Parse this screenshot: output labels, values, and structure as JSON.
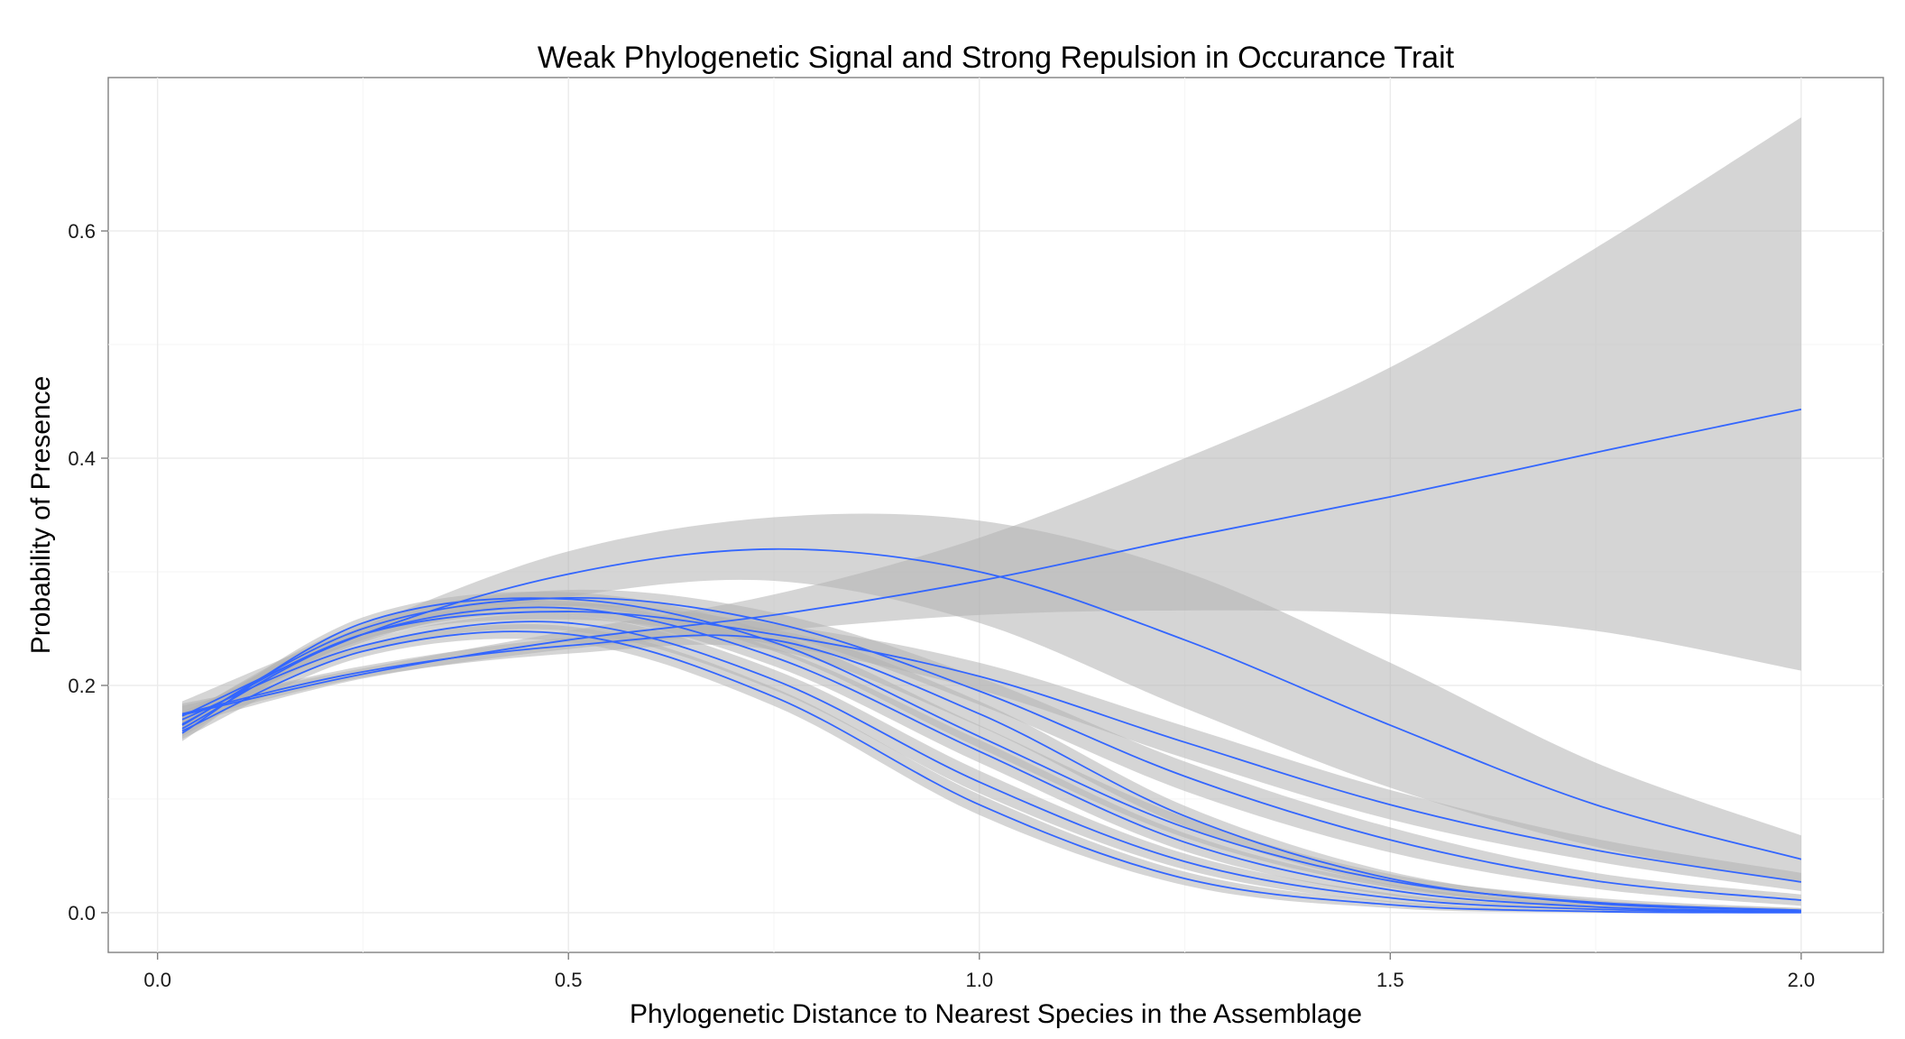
{
  "chart_data": {
    "type": "line",
    "title": "Weak Phylogenetic Signal and Strong Repulsion in Occurance Trait",
    "xlabel": "Phylogenetic Distance to Nearest Species in the Assemblage",
    "ylabel": "Probability of Presence",
    "xlim": [
      -0.06,
      2.1
    ],
    "ylim": [
      -0.035,
      0.735
    ],
    "x_ticks": [
      0.0,
      0.5,
      1.0,
      1.5,
      2.0
    ],
    "x_tick_labels": [
      "0.0",
      "0.5",
      "1.0",
      "1.5",
      "2.0"
    ],
    "y_ticks": [
      0.0,
      0.2,
      0.4,
      0.6
    ],
    "y_tick_labels": [
      "0.0",
      "0.2",
      "0.4",
      "0.6"
    ],
    "grid": true,
    "legend": "none",
    "line_color": "#3366ff",
    "ribbon_color": "#b3b3b3",
    "series": [
      {
        "x": [
          0.03,
          0.25,
          0.5,
          0.75,
          1.0,
          1.25,
          1.5,
          1.75,
          2.0
        ],
        "values": [
          0.174,
          0.21,
          0.24,
          0.262,
          0.292,
          0.33,
          0.366,
          0.405,
          0.443
        ],
        "lower": [
          0.165,
          0.206,
          0.232,
          0.248,
          0.262,
          0.266,
          0.263,
          0.248,
          0.213
        ],
        "upper": [
          0.184,
          0.215,
          0.248,
          0.28,
          0.33,
          0.4,
          0.48,
          0.585,
          0.7
        ]
      },
      {
        "x": [
          0.03,
          0.25,
          0.5,
          0.75,
          1.0,
          1.25,
          1.5,
          1.75,
          2.0
        ],
        "values": [
          0.173,
          0.245,
          0.298,
          0.32,
          0.3,
          0.24,
          0.165,
          0.095,
          0.047
        ],
        "lower": [
          0.16,
          0.238,
          0.278,
          0.292,
          0.255,
          0.18,
          0.11,
          0.058,
          0.026
        ],
        "upper": [
          0.186,
          0.252,
          0.318,
          0.348,
          0.345,
          0.3,
          0.22,
          0.132,
          0.068
        ]
      },
      {
        "x": [
          0.03,
          0.25,
          0.5,
          0.75,
          1.0,
          1.25,
          1.5,
          1.75,
          2.0
        ],
        "values": [
          0.166,
          0.245,
          0.265,
          0.245,
          0.208,
          0.15,
          0.095,
          0.055,
          0.027
        ],
        "lower": [
          0.158,
          0.24,
          0.258,
          0.236,
          0.196,
          0.136,
          0.082,
          0.045,
          0.019
        ],
        "upper": [
          0.174,
          0.25,
          0.272,
          0.254,
          0.22,
          0.164,
          0.108,
          0.065,
          0.035
        ]
      },
      {
        "x": [
          0.03,
          0.25,
          0.5,
          0.75,
          1.0,
          1.25,
          1.5,
          1.75,
          2.0
        ],
        "values": [
          0.165,
          0.25,
          0.277,
          0.255,
          0.195,
          0.12,
          0.064,
          0.028,
          0.011
        ],
        "lower": [
          0.157,
          0.245,
          0.27,
          0.246,
          0.183,
          0.107,
          0.053,
          0.021,
          0.006
        ],
        "upper": [
          0.173,
          0.255,
          0.284,
          0.264,
          0.207,
          0.133,
          0.075,
          0.035,
          0.016
        ]
      },
      {
        "x": [
          0.03,
          0.25,
          0.5,
          0.75,
          1.0,
          1.25,
          1.5,
          1.75,
          2.0
        ],
        "values": [
          0.158,
          0.255,
          0.276,
          0.238,
          0.155,
          0.075,
          0.028,
          0.009,
          0.002
        ],
        "lower": [
          0.151,
          0.25,
          0.27,
          0.23,
          0.145,
          0.066,
          0.022,
          0.005,
          0.0
        ],
        "upper": [
          0.165,
          0.26,
          0.282,
          0.246,
          0.165,
          0.084,
          0.034,
          0.013,
          0.004
        ]
      },
      {
        "x": [
          0.03,
          0.25,
          0.5,
          0.75,
          1.0,
          1.25,
          1.5,
          1.75,
          2.0
        ],
        "values": [
          0.162,
          0.245,
          0.268,
          0.225,
          0.142,
          0.062,
          0.02,
          0.005,
          0.001
        ],
        "lower": [
          0.155,
          0.24,
          0.262,
          0.217,
          0.132,
          0.054,
          0.015,
          0.003,
          0.0
        ],
        "upper": [
          0.169,
          0.25,
          0.274,
          0.233,
          0.152,
          0.07,
          0.025,
          0.007,
          0.002
        ]
      },
      {
        "x": [
          0.03,
          0.25,
          0.5,
          0.75,
          1.0,
          1.25,
          1.5,
          1.75,
          2.0
        ],
        "values": [
          0.17,
          0.235,
          0.255,
          0.205,
          0.115,
          0.045,
          0.013,
          0.003,
          0.001
        ],
        "lower": [
          0.163,
          0.23,
          0.248,
          0.196,
          0.105,
          0.038,
          0.009,
          0.001,
          0.0
        ],
        "upper": [
          0.177,
          0.24,
          0.262,
          0.214,
          0.125,
          0.052,
          0.017,
          0.005,
          0.002
        ]
      },
      {
        "x": [
          0.03,
          0.25,
          0.5,
          0.75,
          1.0,
          1.25,
          1.5,
          1.75,
          2.0
        ],
        "values": [
          0.16,
          0.23,
          0.245,
          0.19,
          0.095,
          0.03,
          0.007,
          0.001,
          0.0
        ],
        "lower": [
          0.153,
          0.225,
          0.238,
          0.182,
          0.086,
          0.024,
          0.004,
          0.0,
          0.0
        ],
        "upper": [
          0.167,
          0.235,
          0.252,
          0.198,
          0.104,
          0.036,
          0.01,
          0.002,
          0.001
        ]
      },
      {
        "x": [
          0.03,
          0.25,
          0.5,
          0.75,
          1.0,
          1.25,
          1.5,
          1.75,
          2.0
        ],
        "values": [
          0.175,
          0.212,
          0.235,
          0.24,
          0.175,
          0.085,
          0.03,
          0.008,
          0.002
        ],
        "lower": [
          0.168,
          0.207,
          0.228,
          0.231,
          0.164,
          0.076,
          0.024,
          0.005,
          0.0
        ],
        "upper": [
          0.182,
          0.217,
          0.242,
          0.249,
          0.186,
          0.094,
          0.036,
          0.011,
          0.004
        ]
      }
    ]
  }
}
